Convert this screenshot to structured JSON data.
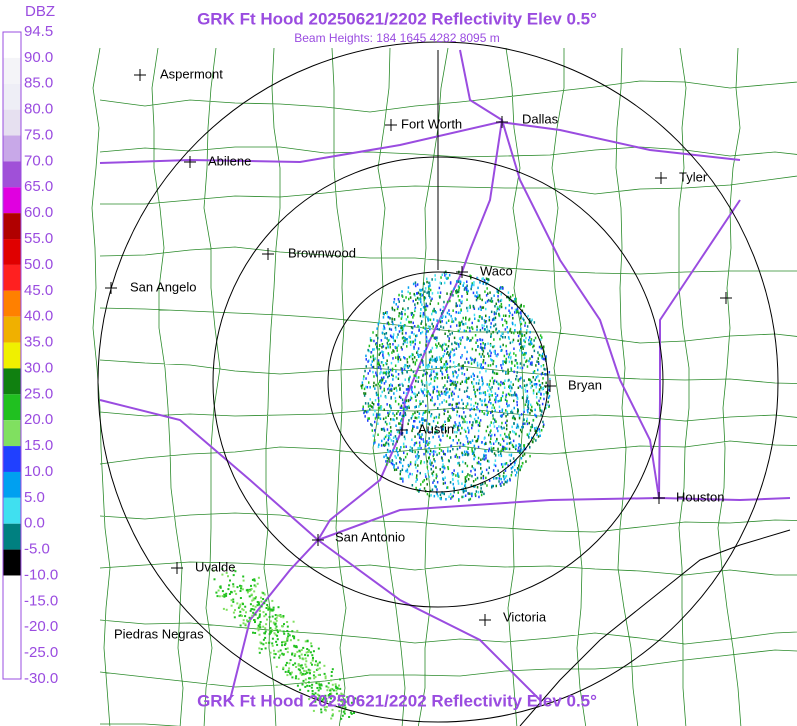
{
  "header": {
    "title": "GRK Ft Hood 20250621/2202 Reflectivity Elev 0.5°",
    "subtitle": "Beam Heights: 184 1645 4282 8095 m",
    "footer_title": "GRK Ft Hood 20250621/2202 Reflectivity Elev 0.5°"
  },
  "colorbar": {
    "unit": "DBZ",
    "labels": [
      "94.5",
      "90.0",
      "85.0",
      "80.0",
      "75.0",
      "70.0",
      "65.0",
      "60.0",
      "55.0",
      "50.0",
      "45.0",
      "40.0",
      "35.0",
      "30.0",
      "25.0",
      "20.0",
      "15.0",
      "10.0",
      "5.0",
      "0.0",
      "-5.0",
      "-10.0",
      "-15.0",
      "-20.0",
      "-25.0",
      "-30.0"
    ],
    "colors": [
      "#ffffff",
      "#f4f4f8",
      "#eeeef6",
      "#e6e0f0",
      "#c8a8e8",
      "#a050d8",
      "#e000e0",
      "#b00000",
      "#e00000",
      "#ff2020",
      "#ff8000",
      "#f0b000",
      "#f0f000",
      "#108010",
      "#20c020",
      "#80e060",
      "#2040ff",
      "#00a0f0",
      "#40e0f0",
      "#008080",
      "#000000",
      "#ffffff",
      "#ffffff",
      "#ffffff",
      "#ffffff"
    ]
  },
  "cities": [
    {
      "name": "Aspermont"
    },
    {
      "name": "Fort Worth"
    },
    {
      "name": "Dallas"
    },
    {
      "name": "Abilene"
    },
    {
      "name": "Tyler"
    },
    {
      "name": "Brownwood"
    },
    {
      "name": "Waco"
    },
    {
      "name": "San Angelo"
    },
    {
      "name": "Bryan"
    },
    {
      "name": "Austin"
    },
    {
      "name": "Houston"
    },
    {
      "name": "San Antonio"
    },
    {
      "name": "Uvalde"
    },
    {
      "name": "Victoria"
    },
    {
      "name": "Piedras Negras"
    }
  ]
}
